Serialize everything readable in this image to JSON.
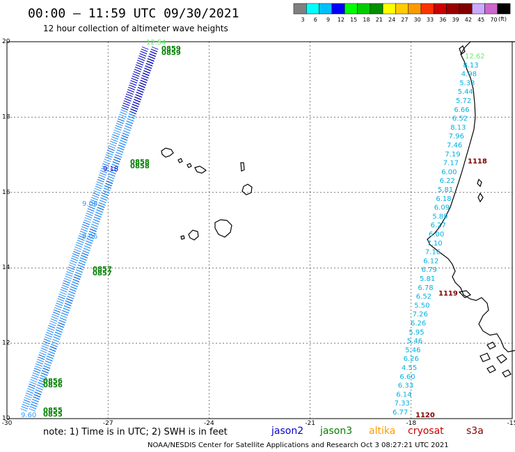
{
  "header": {
    "title": "00:00 – 11:59 UTC 09/30/2021",
    "subtitle": "12 hour collection of altimeter wave heights"
  },
  "colorbar": {
    "unit": "(ft)",
    "items": [
      {
        "label": "3",
        "color": "#808080"
      },
      {
        "label": "6",
        "color": "#00ffff"
      },
      {
        "label": "9",
        "color": "#00bfff"
      },
      {
        "label": "12",
        "color": "#0000ff"
      },
      {
        "label": "15",
        "color": "#00ff00"
      },
      {
        "label": "18",
        "color": "#00cc00"
      },
      {
        "label": "21",
        "color": "#009000"
      },
      {
        "label": "24",
        "color": "#ffff00"
      },
      {
        "label": "27",
        "color": "#ffcc00"
      },
      {
        "label": "30",
        "color": "#ff9900"
      },
      {
        "label": "33",
        "color": "#ff3300"
      },
      {
        "label": "36",
        "color": "#cc0000"
      },
      {
        "label": "39",
        "color": "#990000"
      },
      {
        "label": "42",
        "color": "#800000"
      },
      {
        "label": "45",
        "color": "#ccaaff"
      },
      {
        "label": "70",
        "color": "#cc66cc"
      },
      {
        "label": "",
        "color": "#000000"
      }
    ]
  },
  "axes": {
    "lon_labels": [
      "-30",
      "-27",
      "-24",
      "-21",
      "-18",
      "-15"
    ],
    "lat_labels": [
      "20",
      "18",
      "16",
      "14",
      "12",
      "10"
    ],
    "lon_range": [
      -30,
      -15
    ],
    "lat_range": [
      10,
      20
    ]
  },
  "passes": [
    {
      "time": "0859",
      "color": "#008000"
    },
    {
      "time": "0858",
      "color": "#008000"
    },
    {
      "time": "0857",
      "color": "#008000"
    },
    {
      "time": "0856",
      "color": "#008000"
    },
    {
      "time": "0855",
      "color": "#008000"
    },
    {
      "time": "1118",
      "color": "#800000"
    },
    {
      "time": "1119",
      "color": "#800000"
    },
    {
      "time": "1120",
      "color": "#800000"
    }
  ],
  "track_values": {
    "west_samples": [
      {
        "text": "12.54",
        "color": "#66ee66"
      },
      {
        "text": "9.18",
        "color": "#1010cc"
      },
      {
        "text": "9.06",
        "color": "#3399ff"
      },
      {
        "text": "9.06",
        "color": "#3399ff"
      },
      {
        "text": "9.60",
        "color": "#3399ff"
      }
    ],
    "east": [
      {
        "text": "12.62",
        "color": "#66ee66"
      },
      {
        "text": "8.13",
        "color": "#00b0e0"
      },
      {
        "text": "4.98",
        "color": "#00b0e0"
      },
      {
        "text": "5.33",
        "color": "#00b0e0"
      },
      {
        "text": "5.44",
        "color": "#00b0e0"
      },
      {
        "text": "5.72",
        "color": "#00b0e0"
      },
      {
        "text": "6.66",
        "color": "#00b0e0"
      },
      {
        "text": "6.52",
        "color": "#00b0e0"
      },
      {
        "text": "8.13",
        "color": "#00b0e0"
      },
      {
        "text": "7.96",
        "color": "#00b0e0"
      },
      {
        "text": "7.46",
        "color": "#00b0e0"
      },
      {
        "text": "7.19",
        "color": "#00b0e0"
      },
      {
        "text": "7.17",
        "color": "#00b0e0"
      },
      {
        "text": "6.00",
        "color": "#00b0e0"
      },
      {
        "text": "6.22",
        "color": "#00b0e0"
      },
      {
        "text": "5.81",
        "color": "#00b0e0"
      },
      {
        "text": "6.18",
        "color": "#00b0e0"
      },
      {
        "text": "6.09",
        "color": "#00b0e0"
      },
      {
        "text": "5.89",
        "color": "#00b0e0"
      },
      {
        "text": "6.27",
        "color": "#00b0e0"
      },
      {
        "text": "6.00",
        "color": "#00b0e0"
      },
      {
        "text": "7.10",
        "color": "#00b0e0"
      },
      {
        "text": "7.16",
        "color": "#00b0e0"
      },
      {
        "text": "6.12",
        "color": "#00b0e0"
      },
      {
        "text": "6.79",
        "color": "#00b0e0"
      },
      {
        "text": "5.81",
        "color": "#00b0e0"
      },
      {
        "text": "6.78",
        "color": "#00b0e0"
      },
      {
        "text": "6.52",
        "color": "#00b0e0"
      },
      {
        "text": "5.50",
        "color": "#00b0e0"
      },
      {
        "text": "7.26",
        "color": "#00b0e0"
      },
      {
        "text": "6.26",
        "color": "#00b0e0"
      },
      {
        "text": "5.95",
        "color": "#00b0e0"
      },
      {
        "text": "5.46",
        "color": "#00b0e0"
      },
      {
        "text": "5.46",
        "color": "#00b0e0"
      },
      {
        "text": "6.26",
        "color": "#00b0e0"
      },
      {
        "text": "4.55",
        "color": "#00b0e0"
      },
      {
        "text": "6.60",
        "color": "#00b0e0"
      },
      {
        "text": "6.33",
        "color": "#00b0e0"
      },
      {
        "text": "6.14",
        "color": "#00b0e0"
      },
      {
        "text": "7.33",
        "color": "#00b0e0"
      },
      {
        "text": "6.77",
        "color": "#00b0e0"
      }
    ]
  },
  "footer": {
    "note": "note:  1) Time is in UTC;  2) SWH is in feet",
    "legend": [
      {
        "label": "jason2",
        "color": "#0000cc"
      },
      {
        "label": "jason3",
        "color": "#008000"
      },
      {
        "label": "altika",
        "color": "#ff9900"
      },
      {
        "label": "cryosat",
        "color": "#cc0000"
      },
      {
        "label": "s3a",
        "color": "#800000"
      }
    ],
    "credit": "NOAA/NESDIS Center for Satellite Applications and Research     Oct  3 08:27:21 UTC 2021"
  }
}
